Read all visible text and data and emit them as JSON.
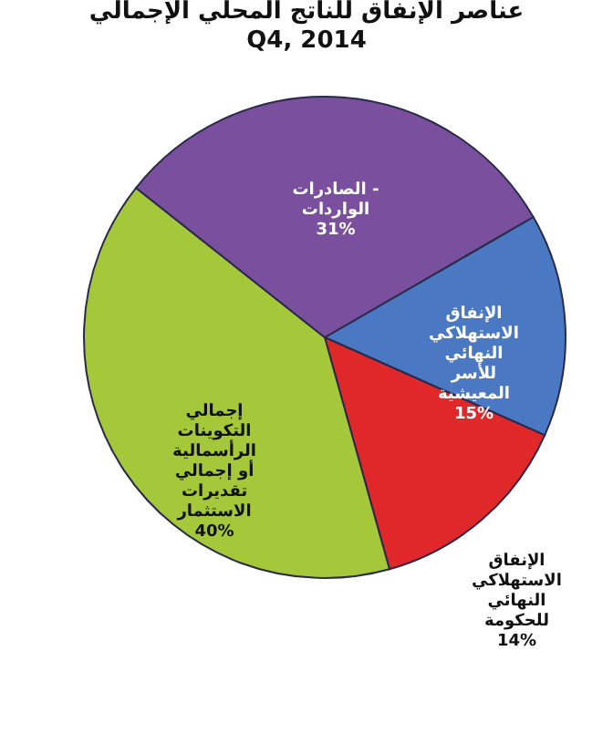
{
  "chart_data": {
    "type": "pie",
    "title": "عناصر الإنفاق للناتج المحلي الإجمالي",
    "subtitle": "Q4, 2014",
    "categories": [
      "الإنفاق الاستهلاكي النهائي للأسر المعيشية",
      "الإنفاق الاستهلاكي النهائي للحكومة",
      "إجمالي التكوينات الرأسمالية أو إجمالي تقديرات الاستثمار",
      "الصادرات - الواردات"
    ],
    "values": [
      15,
      14,
      40,
      31
    ],
    "value_labels": [
      "15%",
      "14%",
      "40%",
      "31%"
    ],
    "colors": [
      "#4a78c2",
      "#e0282b",
      "#a4c83a",
      "#7a4f9e"
    ],
    "legend": false
  }
}
